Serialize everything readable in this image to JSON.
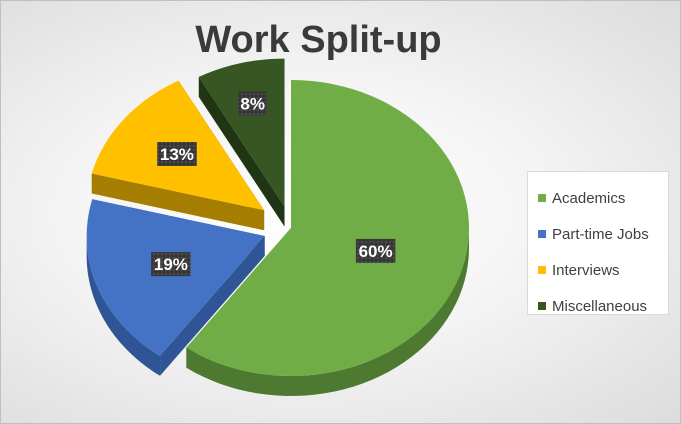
{
  "chart_data": {
    "type": "pie",
    "title": "Work Split-up",
    "categories": [
      "Academics",
      "Part-time Jobs",
      "Interviews",
      "Miscellaneous"
    ],
    "values": [
      60,
      19,
      13,
      8
    ],
    "data_labels": [
      "60%",
      "19%",
      "13%",
      "8%"
    ],
    "colors": [
      "#70ad47",
      "#4472c4",
      "#ffc000",
      "#375623"
    ],
    "side_colors": [
      "#4d7a30",
      "#2f5597",
      "#a57d00",
      "#1f3514"
    ],
    "legend_position": "right",
    "style": "3d-exploded"
  }
}
